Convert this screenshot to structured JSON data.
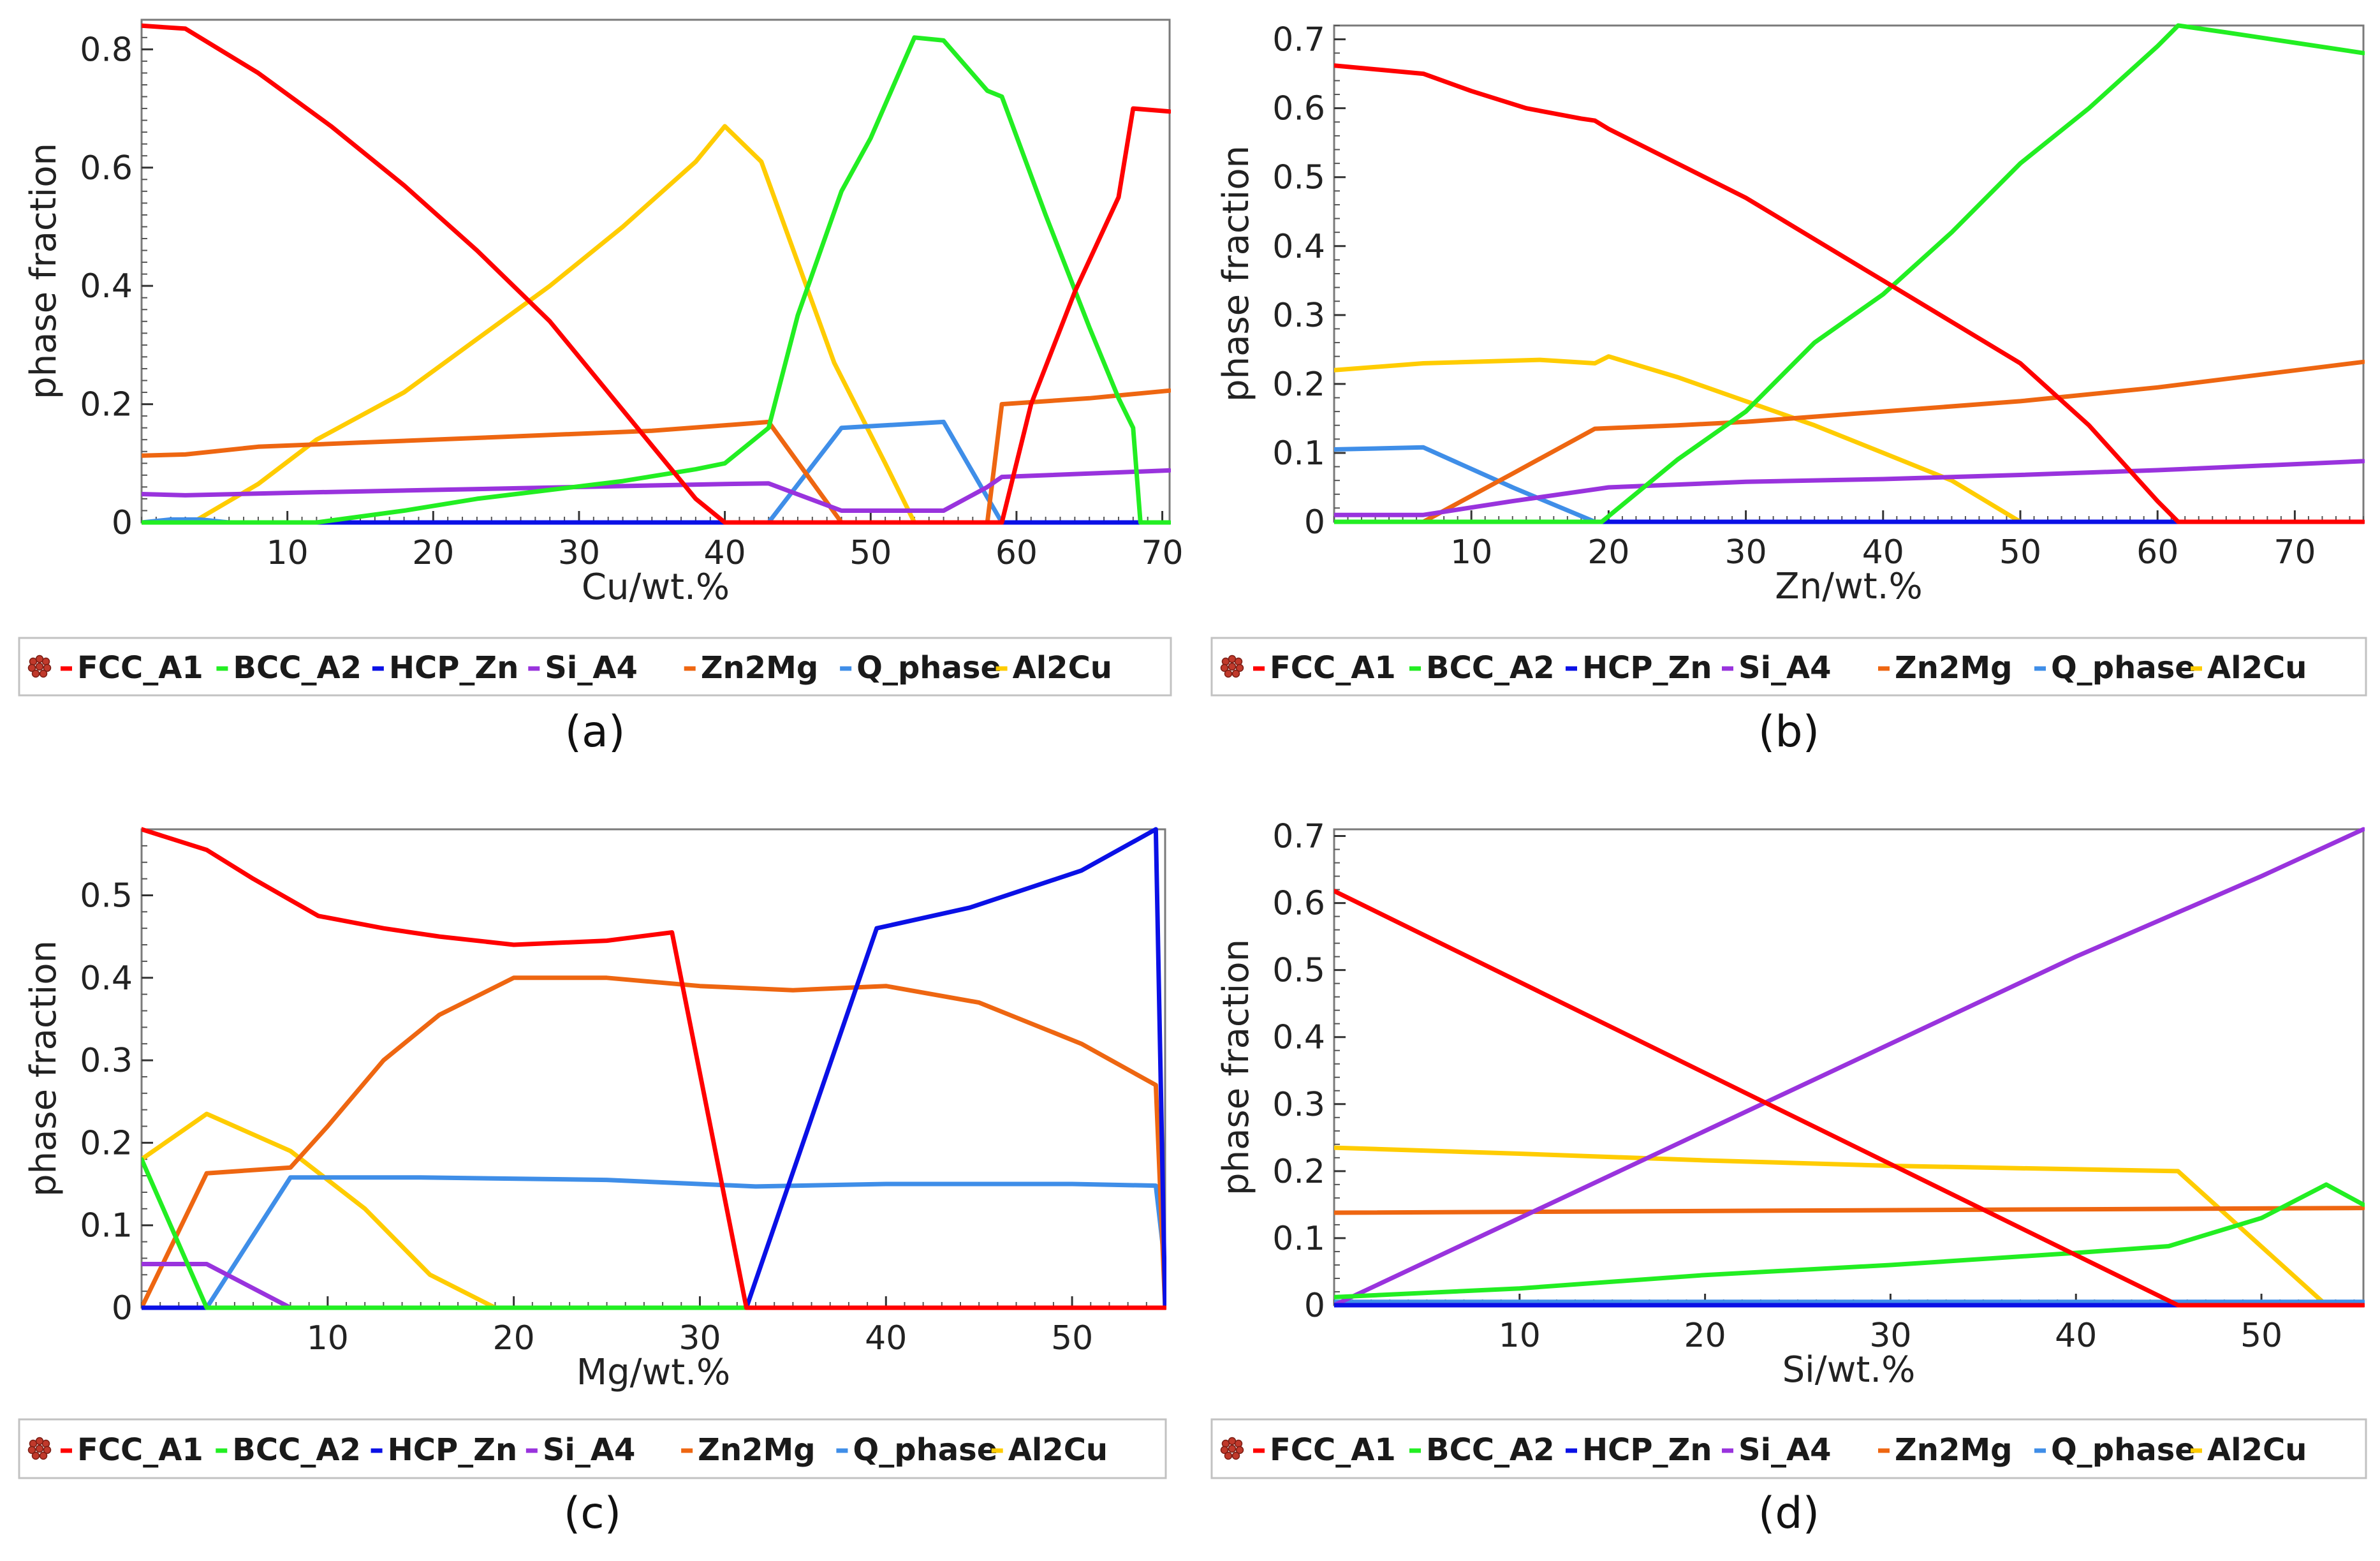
{
  "legend_labels": [
    "FCC_A1",
    "BCC_A2",
    "HCP_Zn",
    "Si_A4",
    "Zn2Mg",
    "Q_phase",
    "Al2Cu"
  ],
  "series_colors": {
    "FCC_A1": "#ff0000",
    "BCC_A2": "#22ee22",
    "HCP_Zn": "#0a10e6",
    "Si_A4": "#9933dd",
    "Zn2Mg": "#ee6611",
    "Q_phase": "#3f8ee8",
    "Al2Cu": "#ffcc00"
  },
  "chart_data": [
    {
      "panel_label": "(a)",
      "type": "line",
      "xlabel": "Cu/wt.%",
      "ylabel": "phase fraction",
      "xlim": [
        0,
        70.5
      ],
      "ylim": [
        0,
        0.85
      ],
      "xticks": [
        10,
        20,
        30,
        40,
        50,
        60,
        70
      ],
      "yticks": [
        0,
        0.2,
        0.4,
        0.6,
        0.8
      ],
      "xminor": 1,
      "yminor": 0.02,
      "series": [
        {
          "name": "FCC_A1",
          "x": [
            0,
            3,
            8,
            13,
            18,
            23,
            28,
            33,
            38,
            40,
            59,
            61,
            64,
            67,
            68,
            70.5
          ],
          "y": [
            0.84,
            0.835,
            0.76,
            0.67,
            0.57,
            0.46,
            0.34,
            0.19,
            0.04,
            0,
            0,
            0.2,
            0.39,
            0.55,
            0.7,
            0.695
          ]
        },
        {
          "name": "BCC_A2",
          "x": [
            0,
            12,
            18,
            23,
            28,
            33,
            38,
            40,
            43,
            45,
            48,
            50,
            53,
            55,
            58,
            59,
            62,
            65,
            67,
            68,
            68.5,
            70.5
          ],
          "y": [
            0,
            0,
            0.02,
            0.04,
            0.055,
            0.07,
            0.09,
            0.1,
            0.16,
            0.35,
            0.56,
            0.65,
            0.82,
            0.815,
            0.73,
            0.72,
            0.52,
            0.33,
            0.21,
            0.16,
            0,
            0
          ]
        },
        {
          "name": "HCP_Zn",
          "x": [
            0,
            70.5
          ],
          "y": [
            0,
            0
          ]
        },
        {
          "name": "Si_A4",
          "x": [
            0,
            3,
            10,
            20,
            30,
            40,
            43,
            48,
            55,
            58,
            59,
            70.5
          ],
          "y": [
            0.048,
            0.046,
            0.05,
            0.055,
            0.06,
            0.065,
            0.066,
            0.02,
            0.02,
            0.06,
            0.077,
            0.088
          ]
        },
        {
          "name": "Zn2Mg",
          "x": [
            0,
            3,
            8,
            15,
            25,
            35,
            42,
            43,
            48,
            58,
            59,
            65,
            70.5
          ],
          "y": [
            0.113,
            0.115,
            0.128,
            0.135,
            0.145,
            0.155,
            0.168,
            0.17,
            0,
            0,
            0.2,
            0.21,
            0.223
          ]
        },
        {
          "name": "Q_phase",
          "x": [
            0,
            2,
            4,
            6,
            43,
            48,
            55,
            59,
            70.5
          ],
          "y": [
            0,
            0.005,
            0.005,
            0,
            0,
            0.16,
            0.17,
            0,
            0
          ]
        },
        {
          "name": "Al2Cu",
          "x": [
            0,
            3.5,
            8,
            12,
            18,
            23,
            28,
            33,
            38,
            40,
            42.5,
            45,
            47.5,
            51,
            53,
            70.5
          ],
          "y": [
            0,
            0,
            0.065,
            0.14,
            0.22,
            0.31,
            0.4,
            0.5,
            0.61,
            0.67,
            0.61,
            0.44,
            0.27,
            0.1,
            0,
            0
          ]
        }
      ]
    },
    {
      "panel_label": "(b)",
      "type": "line",
      "xlabel": "Zn/wt.%",
      "ylabel": "phase fraction",
      "xlim": [
        0,
        75
      ],
      "ylim": [
        0,
        0.72
      ],
      "xticks": [
        10,
        20,
        30,
        40,
        50,
        60,
        70
      ],
      "yticks": [
        0,
        0.1,
        0.2,
        0.3,
        0.4,
        0.5,
        0.6,
        0.7
      ],
      "xminor": 1,
      "yminor": 0.02,
      "series": [
        {
          "name": "FCC_A1",
          "x": [
            0,
            6.5,
            10,
            14,
            18,
            19,
            20,
            25,
            30,
            35,
            40,
            45,
            50,
            55,
            60,
            61.5,
            75
          ],
          "y": [
            0.662,
            0.65,
            0.625,
            0.6,
            0.585,
            0.582,
            0.57,
            0.52,
            0.47,
            0.41,
            0.35,
            0.29,
            0.23,
            0.14,
            0.03,
            0,
            0
          ]
        },
        {
          "name": "BCC_A2",
          "x": [
            0,
            19.5,
            25,
            30,
            35,
            40,
            45,
            50,
            55,
            60,
            61.5,
            65,
            70,
            75
          ],
          "y": [
            0,
            0,
            0.09,
            0.16,
            0.26,
            0.33,
            0.42,
            0.52,
            0.6,
            0.69,
            0.72,
            0.71,
            0.695,
            0.68
          ]
        },
        {
          "name": "HCP_Zn",
          "x": [
            0,
            19.5,
            75
          ],
          "y": [
            0,
            0,
            0
          ]
        },
        {
          "name": "Si_A4",
          "x": [
            0,
            6.5,
            13,
            20,
            30,
            40,
            50,
            60,
            75
          ],
          "y": [
            0.01,
            0.01,
            0.03,
            0.05,
            0.058,
            0.062,
            0.068,
            0.075,
            0.088
          ]
        },
        {
          "name": "Zn2Mg",
          "x": [
            0,
            6.5,
            13,
            19,
            25,
            30,
            40,
            50,
            60,
            75
          ],
          "y": [
            0,
            0,
            0.07,
            0.135,
            0.14,
            0.145,
            0.16,
            0.175,
            0.195,
            0.232
          ]
        },
        {
          "name": "Q_phase",
          "x": [
            0,
            6.5,
            13,
            19,
            75
          ],
          "y": [
            0.105,
            0.108,
            0.05,
            0,
            0
          ]
        },
        {
          "name": "Al2Cu",
          "x": [
            0,
            6.5,
            15,
            19,
            20,
            25,
            30,
            35,
            40,
            45,
            50,
            75
          ],
          "y": [
            0.22,
            0.23,
            0.235,
            0.23,
            0.24,
            0.21,
            0.175,
            0.14,
            0.1,
            0.06,
            0,
            0
          ]
        }
      ]
    },
    {
      "panel_label": "(c)",
      "type": "line",
      "xlabel": "Mg/wt.%",
      "ylabel": "phase fraction",
      "xlim": [
        0,
        55
      ],
      "ylim": [
        0,
        0.58
      ],
      "xticks": [
        10,
        20,
        30,
        40,
        50
      ],
      "yticks": [
        0,
        0.1,
        0.2,
        0.3,
        0.4,
        0.5
      ],
      "xminor": 1,
      "yminor": 0.02,
      "series": [
        {
          "name": "FCC_A1",
          "x": [
            0,
            3.5,
            6,
            9.5,
            13,
            16,
            20,
            25,
            28.5,
            32.5,
            55
          ],
          "y": [
            0.58,
            0.555,
            0.52,
            0.475,
            0.46,
            0.45,
            0.44,
            0.445,
            0.455,
            0,
            0
          ]
        },
        {
          "name": "BCC_A2",
          "x": [
            0,
            3.5,
            55
          ],
          "y": [
            0.18,
            0,
            0
          ]
        },
        {
          "name": "HCP_Zn",
          "x": [
            0,
            32.5,
            39.5,
            44.5,
            50.5,
            54.5,
            55
          ],
          "y": [
            0,
            0,
            0.46,
            0.485,
            0.53,
            0.58,
            0
          ]
        },
        {
          "name": "Si_A4",
          "x": [
            0,
            3.5,
            8,
            55
          ],
          "y": [
            0.053,
            0.053,
            0,
            0
          ]
        },
        {
          "name": "Zn2Mg",
          "x": [
            0,
            3.5,
            8,
            10,
            13,
            16,
            20,
            25,
            30,
            35,
            40,
            45,
            50.5,
            54.5,
            55
          ],
          "y": [
            0,
            0.163,
            0.17,
            0.22,
            0.3,
            0.355,
            0.4,
            0.4,
            0.39,
            0.385,
            0.39,
            0.37,
            0.32,
            0.27,
            0
          ]
        },
        {
          "name": "Q_phase",
          "x": [
            0,
            3.5,
            8,
            15,
            25,
            33,
            40,
            50,
            54.5,
            55
          ],
          "y": [
            0,
            0,
            0.158,
            0.158,
            0.155,
            0.147,
            0.15,
            0.15,
            0.148,
            0.05
          ]
        },
        {
          "name": "Al2Cu",
          "x": [
            0,
            3.5,
            8,
            12,
            15.5,
            19,
            55
          ],
          "y": [
            0.18,
            0.235,
            0.19,
            0.12,
            0.04,
            0,
            0
          ]
        }
      ]
    },
    {
      "panel_label": "(d)",
      "type": "line",
      "xlabel": "Si/wt.%",
      "ylabel": "phase fraction",
      "xlim": [
        0,
        55.5
      ],
      "ylim": [
        0,
        0.71
      ],
      "xticks": [
        10,
        20,
        30,
        40,
        50
      ],
      "yticks": [
        0,
        0.1,
        0.2,
        0.3,
        0.4,
        0.5,
        0.6,
        0.7
      ],
      "xminor": 1,
      "yminor": 0.02,
      "series": [
        {
          "name": "FCC_A1",
          "x": [
            0,
            45.5,
            55.5
          ],
          "y": [
            0.618,
            0,
            0
          ]
        },
        {
          "name": "BCC_A2",
          "x": [
            0,
            10,
            20,
            30,
            40,
            45,
            50,
            53.5,
            55.5
          ],
          "y": [
            0.012,
            0.025,
            0.045,
            0.06,
            0.078,
            0.088,
            0.13,
            0.18,
            0.15
          ]
        },
        {
          "name": "HCP_Zn",
          "x": [
            0,
            55.5
          ],
          "y": [
            0,
            0
          ]
        },
        {
          "name": "Si_A4",
          "x": [
            0,
            10,
            20,
            30,
            40,
            50,
            55.5
          ],
          "y": [
            0,
            0.13,
            0.26,
            0.39,
            0.52,
            0.64,
            0.71
          ]
        },
        {
          "name": "Zn2Mg",
          "x": [
            0,
            55.5
          ],
          "y": [
            0.138,
            0.145
          ]
        },
        {
          "name": "Q_phase",
          "x": [
            0,
            55.5
          ],
          "y": [
            0.005,
            0.005
          ]
        },
        {
          "name": "Al2Cu",
          "x": [
            0,
            10,
            20,
            30,
            45.5,
            53.5,
            55.5
          ],
          "y": [
            0.235,
            0.226,
            0.216,
            0.208,
            0.2,
            0,
            0
          ]
        }
      ]
    }
  ]
}
